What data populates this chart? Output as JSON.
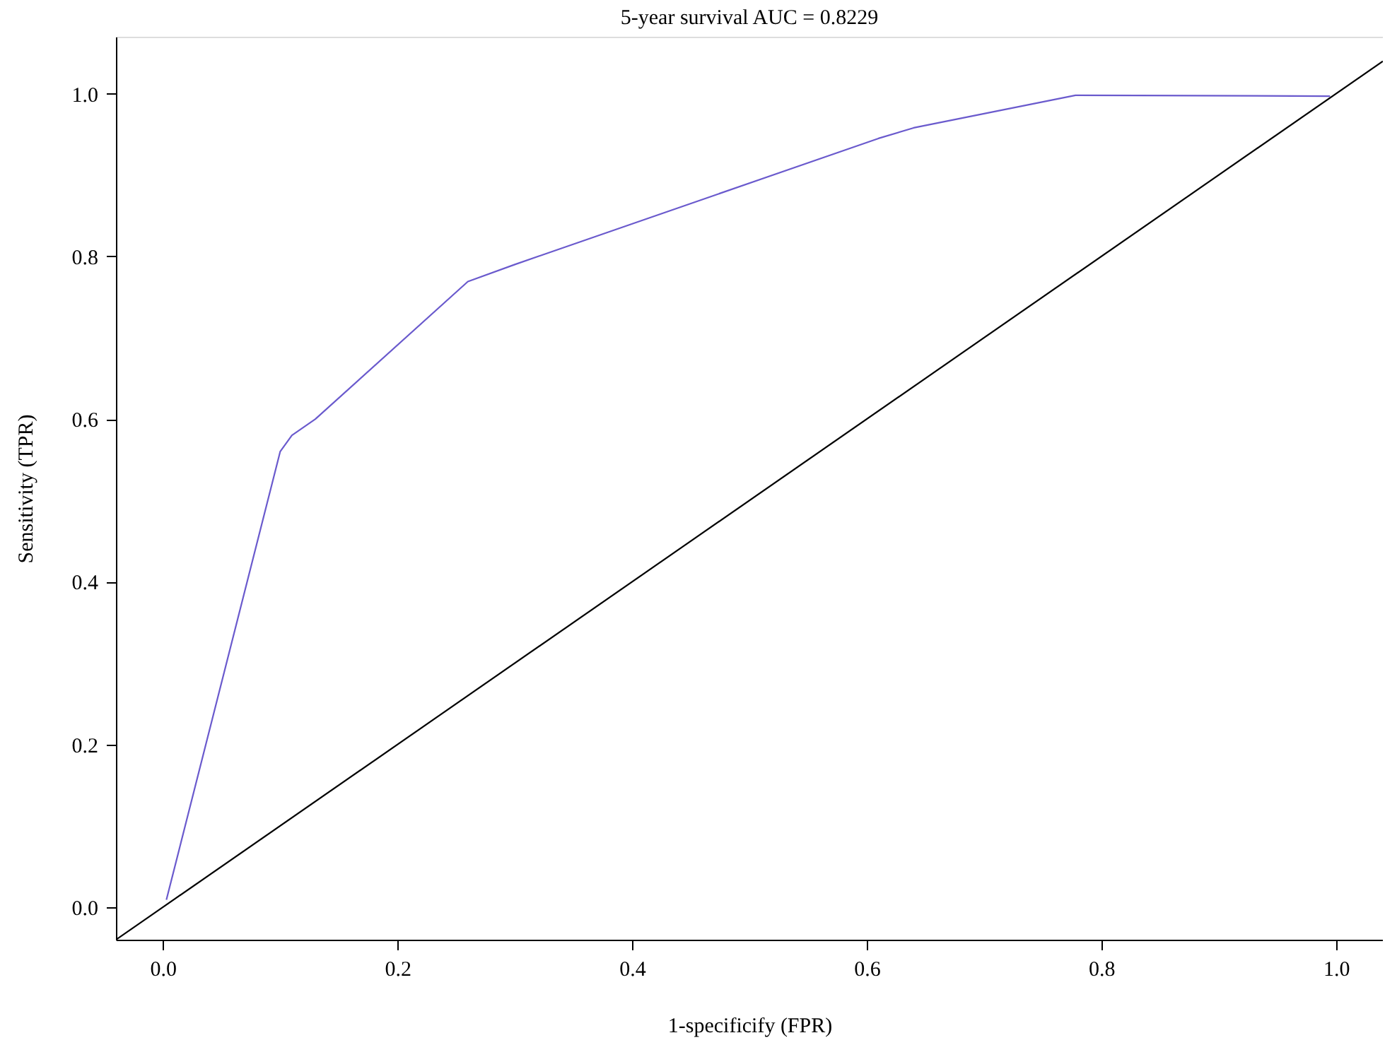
{
  "chart_data": {
    "type": "line",
    "title": "5-year survival AUC = 0.8229",
    "xlabel": "1-specificify (FPR)",
    "ylabel": "Sensitivity (TPR)",
    "xlim": [
      -0.04,
      1.04
    ],
    "ylim": [
      -0.04,
      1.07
    ],
    "xticks": [
      {
        "value": 0,
        "label": "0.0"
      },
      0.2,
      0.4,
      0.6,
      0.8,
      {
        "value": 1,
        "label": "1.0"
      }
    ],
    "yticks": [
      {
        "value": 0,
        "label": "0.0"
      },
      0.2,
      0.4,
      0.6,
      0.8,
      {
        "value": 1,
        "label": "1.0"
      }
    ],
    "grid": false,
    "marker": "none",
    "line_style": "solid",
    "series": [
      {
        "color": "#6a5acd",
        "x": [
          0.003,
          0.1,
          0.11,
          0.13,
          0.26,
          0.3,
          0.61,
          0.64,
          0.778,
          0.995
        ],
        "values": [
          0.009,
          0.56,
          0.58,
          0.6,
          0.769,
          0.79,
          0.945,
          0.958,
          0.998,
          0.997
        ]
      },
      {
        "color": "#000000",
        "x": [
          -0.04,
          1.04
        ],
        "values": [
          -0.04,
          1.04
        ]
      }
    ]
  }
}
